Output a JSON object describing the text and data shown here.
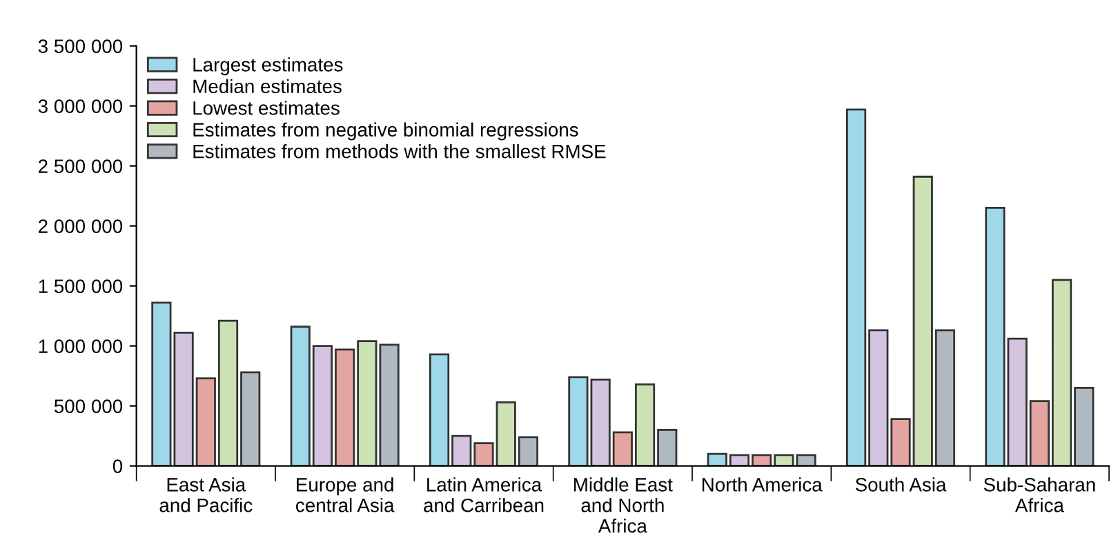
{
  "chart_data": {
    "type": "bar",
    "categories": [
      "East Asia\nand Pacific",
      "Europe and\ncentral Asia",
      "Latin America\nand Carribean",
      "Middle East\nand North\nAfrica",
      "North America",
      "South Asia",
      "Sub-Saharan\nAfrica"
    ],
    "series": [
      {
        "name": "Largest estimates",
        "color": "#9fd8e8",
        "values": [
          1360000,
          1160000,
          930000,
          740000,
          100000,
          2970000,
          2150000
        ]
      },
      {
        "name": "Median estimates",
        "color": "#d4c4e0",
        "values": [
          1110000,
          1000000,
          250000,
          720000,
          90000,
          1130000,
          1060000
        ]
      },
      {
        "name": "Lowest estimates",
        "color": "#e4a4a0",
        "values": [
          730000,
          970000,
          190000,
          280000,
          90000,
          390000,
          540000
        ]
      },
      {
        "name": "Estimates from negative binomial regressions",
        "color": "#cde2b4",
        "values": [
          1210000,
          1040000,
          530000,
          680000,
          90000,
          2410000,
          1550000
        ]
      },
      {
        "name": "Estimates from methods with the smallest RMSE",
        "color": "#b0b8c0",
        "values": [
          780000,
          1010000,
          240000,
          300000,
          90000,
          1130000,
          650000
        ]
      }
    ],
    "ylim": [
      0,
      3500000
    ],
    "yticks": [
      0,
      {
        "value": 500000,
        "label": "500 000"
      },
      {
        "value": 1000000,
        "label": "1 000 000"
      },
      {
        "value": 1500000,
        "label": "1 500 000"
      },
      {
        "value": 2000000,
        "label": "2 000 000"
      },
      {
        "value": 2500000,
        "label": "2 500 000"
      },
      {
        "value": 3000000,
        "label": "3 000 000"
      },
      {
        "value": 3500000,
        "label": "3 500 000"
      }
    ],
    "grid": false,
    "legend": "top left"
  }
}
